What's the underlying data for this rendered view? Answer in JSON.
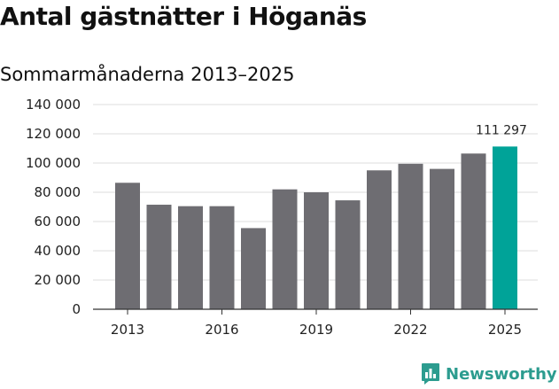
{
  "header": {
    "title": "Antal gästnätter i Höganäs",
    "subtitle": "Sommarmånaderna 2013–2025"
  },
  "brand": {
    "name": "Newsworthy",
    "logo_icon": "newsworthy-chart-icon",
    "color": "#2c9c8f"
  },
  "colors": {
    "bar": "#6e6d72",
    "highlight": "#00a398",
    "grid": "#dddddd"
  },
  "chart_data": {
    "type": "bar",
    "title": "Antal gästnätter i Höganäs",
    "subtitle": "Sommarmånaderna 2013–2025",
    "categories": [
      "2013",
      "2014",
      "2015",
      "2016",
      "2017",
      "2018",
      "2019",
      "2020",
      "2021",
      "2022",
      "2023",
      "2024",
      "2025"
    ],
    "values": [
      86500,
      71500,
      70500,
      70500,
      55500,
      82000,
      80000,
      74500,
      95000,
      99500,
      96000,
      106500,
      111297
    ],
    "highlight_index": 12,
    "annotation": {
      "category": "2025",
      "label": "111 297"
    },
    "x_tick_labels": [
      "2013",
      "2016",
      "2019",
      "2022",
      "2025"
    ],
    "y_tick_labels": [
      "0",
      "20 000",
      "40 000",
      "60 000",
      "80 000",
      "100 000",
      "120 000",
      "140 000"
    ],
    "y_ticks": [
      0,
      20000,
      40000,
      60000,
      80000,
      100000,
      120000,
      140000
    ],
    "ylim": [
      0,
      140000
    ],
    "grid": true,
    "legend": "none",
    "xlabel": "",
    "ylabel": ""
  }
}
